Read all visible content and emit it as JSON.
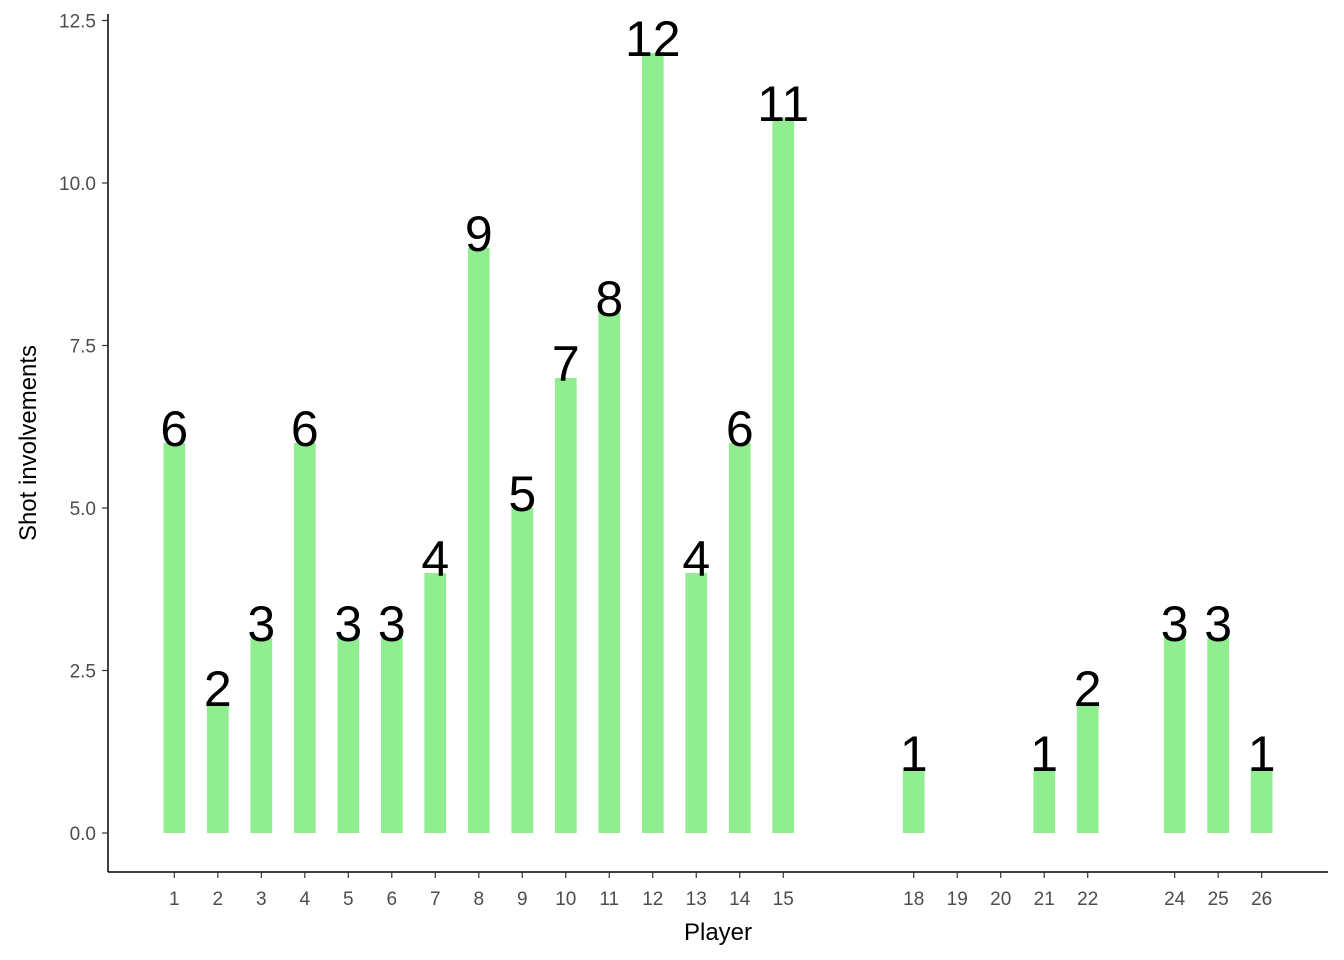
{
  "chart_data": {
    "type": "bar",
    "x_label": "Player",
    "y_label": "Shot involvements",
    "x": [
      1,
      2,
      3,
      4,
      5,
      6,
      7,
      8,
      9,
      10,
      11,
      12,
      13,
      14,
      15,
      18,
      21,
      22,
      24,
      25,
      26
    ],
    "values": [
      6,
      2,
      3,
      6,
      3,
      3,
      4,
      9,
      5,
      7,
      8,
      12,
      4,
      6,
      11,
      1,
      1,
      2,
      3,
      3,
      1
    ],
    "color": "#90ee90",
    "xlim": [
      -0.525,
      27.525
    ],
    "xticks": [
      1,
      2,
      3,
      4,
      5,
      6,
      7,
      8,
      9,
      10,
      11,
      12,
      13,
      14,
      15,
      18,
      19,
      20,
      21,
      22,
      24,
      25,
      26
    ],
    "ylim": [
      -0.6,
      12.6
    ],
    "yticks": [
      {
        "value": 0,
        "label": "0.0"
      },
      2.5,
      {
        "value": 5,
        "label": "5.0"
      },
      7.5,
      {
        "value": 10,
        "label": "10.0"
      },
      12.5
    ],
    "grid": false
  }
}
